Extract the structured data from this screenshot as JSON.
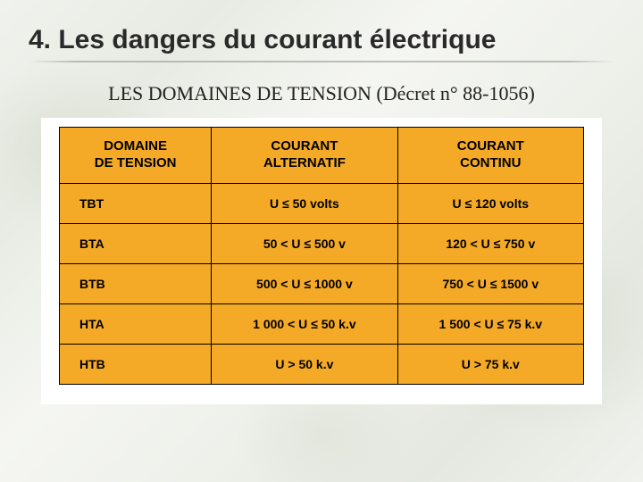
{
  "title": "4. Les dangers du courant électrique",
  "subtitle": "LES DOMAINES DE TENSION (Décret n° 88-1056)",
  "table": {
    "background_color": "#f4aa26",
    "border_color": "#000000",
    "header_fontsize": 15,
    "cell_fontsize": 14,
    "columns": [
      {
        "label_line1": "DOMAINE",
        "label_line2": "DE TENSION",
        "width_pct": 29
      },
      {
        "label_line1": "COURANT",
        "label_line2": "ALTERNATIF",
        "width_pct": 35.5
      },
      {
        "label_line1": "COURANT",
        "label_line2": "CONTINU",
        "width_pct": 35.5
      }
    ],
    "rows": [
      {
        "label": "TBT",
        "alt": "U ≤ 50 volts",
        "cont": "U ≤ 120 volts"
      },
      {
        "label": "BTA",
        "alt": "50  < U ≤  500 v",
        "cont": "120 < U     ≤ 750 v"
      },
      {
        "label": "BTB",
        "alt": "500  < U ≤  1000 v",
        "cont": "750  < U ≤  1500 v"
      },
      {
        "label": "HTA",
        "alt": "1 000  < U ≤  50 k.v",
        "cont": "1 500  < U ≤  75 k.v"
      },
      {
        "label": "HTB",
        "alt": "U  > 50 k.v",
        "cont": "U > 75 k.v"
      }
    ]
  },
  "colors": {
    "page_bg_base": "#eef0ea",
    "title_color": "#2a2a2a",
    "subtitle_color": "#222222",
    "table_card_bg": "#ffffff"
  }
}
